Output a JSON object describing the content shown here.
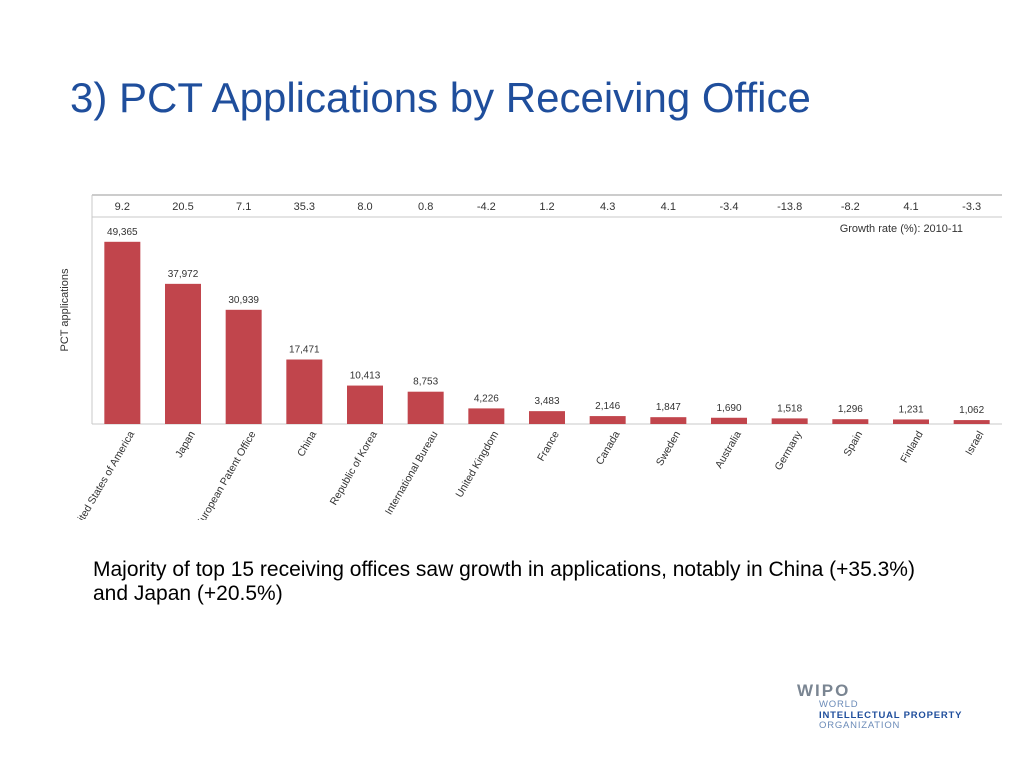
{
  "slide": {
    "title": "3) PCT Applications by Receiving Office",
    "caption": "Majority of top 15 receiving offices saw growth in applications, notably in China (+35.3%) and Japan (+20.5%)"
  },
  "logo": {
    "mark": "WIPO",
    "line1": "WORLD",
    "line2": "INTELLECTUAL PROPERTY",
    "line3": "ORGANIZATION"
  },
  "chart_data": {
    "type": "bar",
    "ylabel": "PCT applications",
    "growth_label": "Growth rate (%): 2010-11",
    "categories": [
      "United States of America",
      "Japan",
      "European Patent Office",
      "China",
      "Republic of Korea",
      "International Bureau",
      "United Kingdom",
      "France",
      "Canada",
      "Sweden",
      "Australia",
      "Germany",
      "Spain",
      "Finland",
      "Israel"
    ],
    "values": [
      49365,
      37972,
      30939,
      17471,
      10413,
      8753,
      4226,
      3483,
      2146,
      1847,
      1690,
      1518,
      1296,
      1231,
      1062
    ],
    "value_labels": [
      "49,365",
      "37,972",
      "30,939",
      "17,471",
      "10,413",
      "8,753",
      "4,226",
      "3,483",
      "2,146",
      "1,847",
      "1,690",
      "1,518",
      "1,296",
      "1,231",
      "1,062"
    ],
    "growth_rates": [
      "9.2",
      "20.5",
      "7.1",
      "35.3",
      "8.0",
      "0.8",
      "-4.2",
      "1.2",
      "4.3",
      "4.1",
      "-3.4",
      "-13.8",
      "-8.2",
      "4.1",
      "-3.3"
    ],
    "ylim": [
      0,
      55000
    ],
    "bar_color": "#c1454c",
    "grid": false
  }
}
